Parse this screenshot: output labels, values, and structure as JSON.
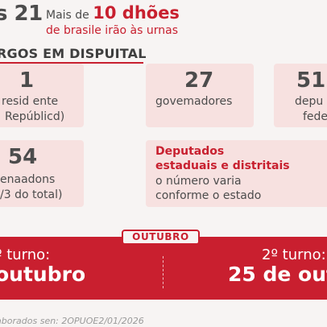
{
  "header": {
    "left_text": "s 21",
    "prefix": "Mais de ",
    "highlight": "10 dhões",
    "line2": "de brasile irão às urnas"
  },
  "section": {
    "label": "RGOS EM DISPUITAL"
  },
  "cards": {
    "presidente": {
      "number": "1",
      "line1": "resid ente",
      "line2": "Repúblicd)"
    },
    "governadores": {
      "number": "27",
      "line1": "govemadores"
    },
    "deputados_federais": {
      "number": "51",
      "line1": "depu",
      "line2": "fede"
    },
    "senadores": {
      "number": "54",
      "line1": "enaadons",
      "line2": "/3 do total)"
    },
    "deputados_estaduais": {
      "title1": "Deputados",
      "title2": "estaduais e distritais",
      "line1": "o número varia",
      "line2": "conforme o estado"
    }
  },
  "band": {
    "month": "OUTUBRO",
    "turn1_label": "º turno:",
    "turn1_date": "outubro",
    "turn2_label": "2º turno:",
    "turn2_date": "25 de out"
  },
  "footer": {
    "text": "laborados sen: 2OPUOE2/01/2026"
  }
}
